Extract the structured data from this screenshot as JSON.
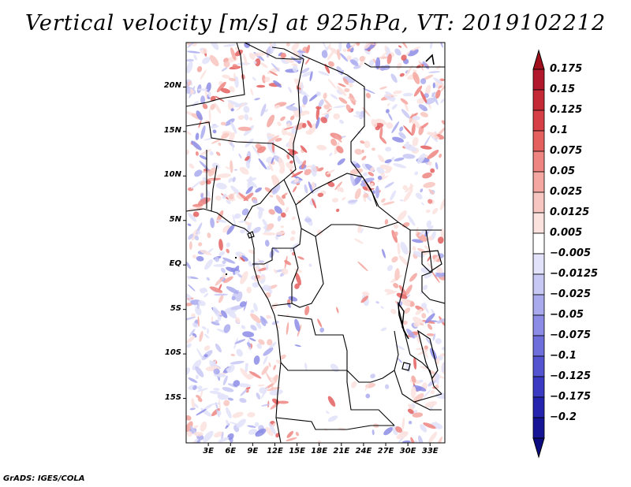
{
  "title": "Vertical velocity [m/s] at 925hPa, VT: 2019102212",
  "credit": "GrADS: IGES/COLA",
  "lat_labels": [
    "20N",
    "15N",
    "10N",
    "5N",
    "EQ",
    "5S",
    "10S",
    "15S"
  ],
  "lat_values": [
    20,
    15,
    10,
    5,
    0,
    -5,
    -10,
    -15
  ],
  "lon_labels": [
    "3E",
    "6E",
    "9E",
    "12E",
    "15E",
    "18E",
    "21E",
    "24E",
    "27E",
    "30E",
    "33E"
  ],
  "lon_values": [
    3,
    6,
    9,
    12,
    15,
    18,
    21,
    24,
    27,
    30,
    33
  ],
  "colorbar_labels": [
    "0.175",
    "0.15",
    "0.125",
    "0.1",
    "0.075",
    "0.05",
    "0.025",
    "0.0125",
    "0.005",
    "−0.005",
    "−0.0125",
    "−0.025",
    "−0.05",
    "−0.075",
    "−0.1",
    "−0.125",
    "−0.175",
    "−0.2"
  ],
  "colorbar_colors": [
    "#b2182b",
    "#c42a35",
    "#d63f45",
    "#e4605f",
    "#ee8580",
    "#f4a6a0",
    "#f8c6c0",
    "#fbe2de",
    "#ffffff",
    "#e2e2fa",
    "#c8c8f4",
    "#a9a9ee",
    "#8c8ce6",
    "#6f6fdc",
    "#5454d0",
    "#3a3ac2",
    "#2424ae",
    "#151596"
  ],
  "colorbar_top_color": "#a0101c",
  "colorbar_bottom_color": "#0c0c80",
  "field": {
    "lon_range": [
      0,
      35
    ],
    "lat_range": [
      -20,
      25
    ]
  }
}
